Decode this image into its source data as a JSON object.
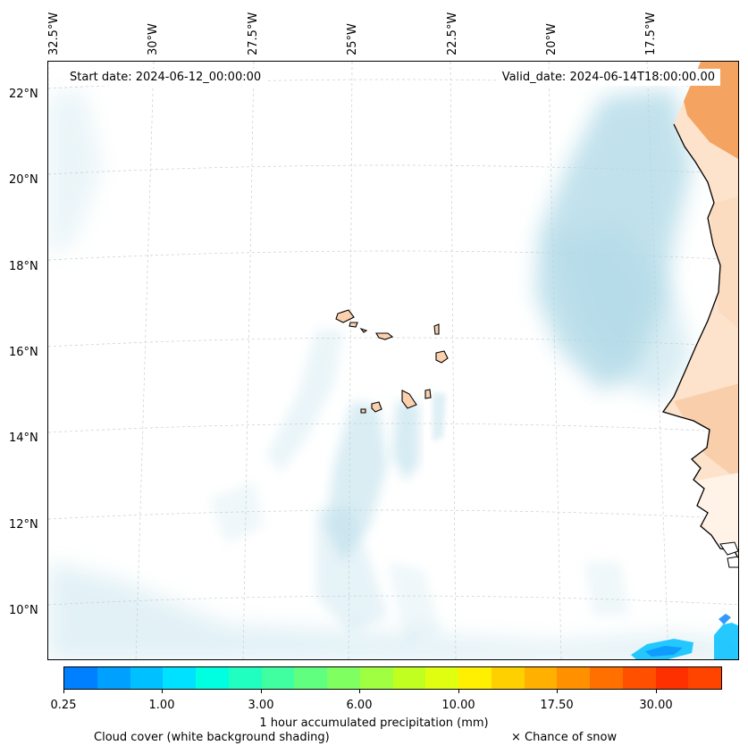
{
  "map": {
    "start_date": "Start date: 2024-06-12_00:00:00",
    "valid_date": "Valid_date: 2024-06-14T18:00:00.00",
    "lon_labels": [
      "32.5°W",
      "30°W",
      "27.5°W",
      "25°W",
      "22.5°W",
      "20°W",
      "17.5°W"
    ],
    "lat_labels": [
      "22°N",
      "20°N",
      "18°N",
      "16°N",
      "14°N",
      "12°N",
      "10°N"
    ],
    "colors": {
      "cloud": "#add8e6",
      "land_precip": "#f4a460",
      "land_light": "#fbd9bd",
      "rain": "#00bfff",
      "coast": "#000000",
      "grid": "#cccccc"
    }
  },
  "colorbar": {
    "colors": [
      "#0080ff",
      "#00a0ff",
      "#00c0ff",
      "#00e0ff",
      "#00ffe0",
      "#20ffc0",
      "#40ffa0",
      "#60ff80",
      "#80ff60",
      "#a0ff40",
      "#c0ff20",
      "#e0ff10",
      "#ffef00",
      "#ffd000",
      "#ffb000",
      "#ff9000",
      "#ff7000",
      "#ff5000",
      "#ff3000",
      "#ff4400"
    ],
    "tick_labels": [
      "0.25",
      "1.00",
      "3.00",
      "6.00",
      "10.00",
      "17.50",
      "30.00"
    ],
    "label": "1 hour accumulated precipitation (mm)"
  },
  "legend": {
    "cloud_cover": "Cloud cover (white background shading)",
    "snow": "× Chance of snow"
  }
}
